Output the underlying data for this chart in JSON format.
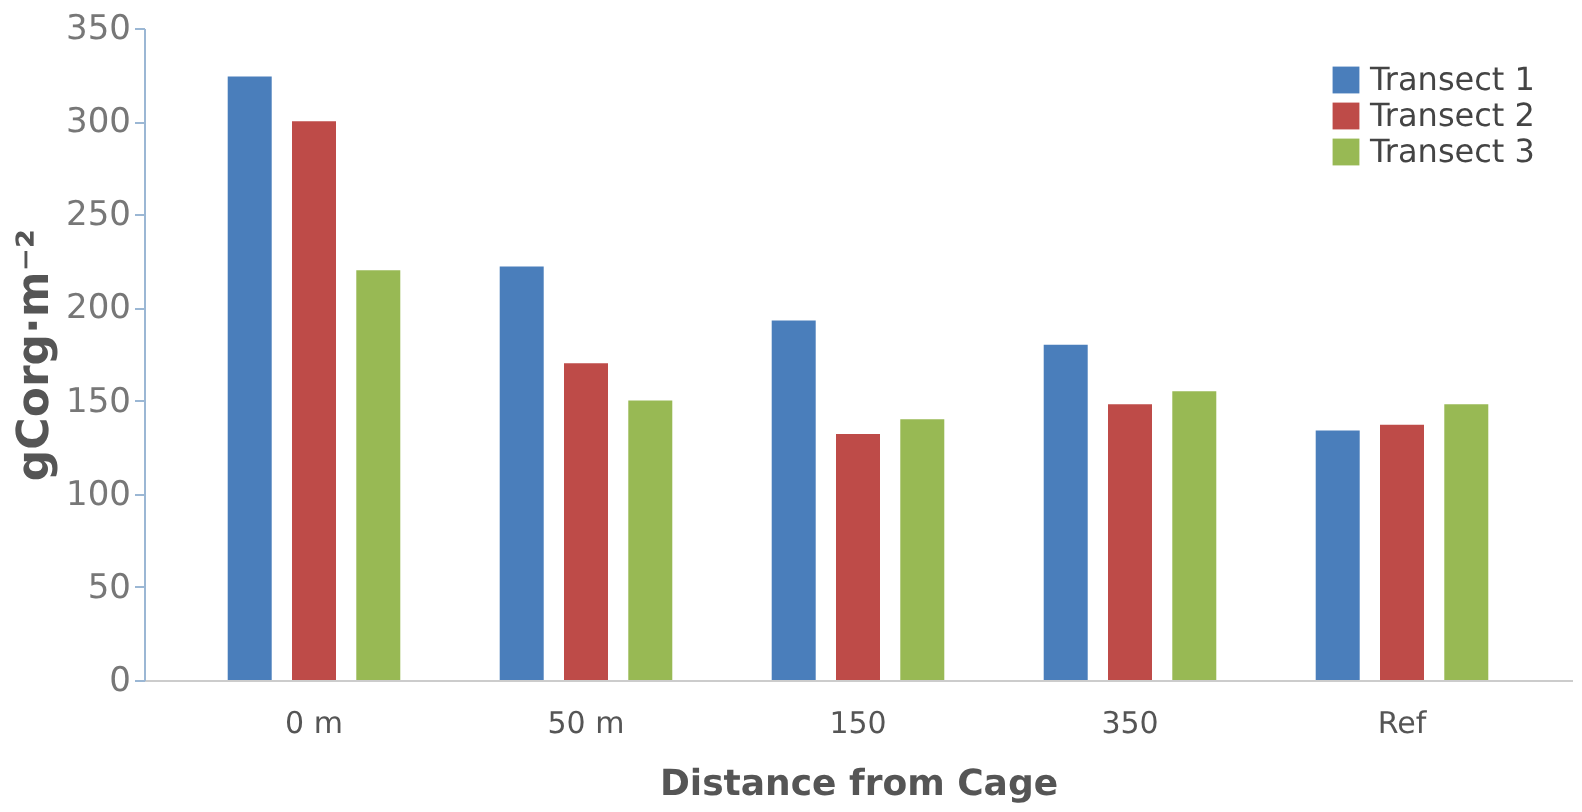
{
  "chart_data": {
    "type": "bar",
    "xlabel": "Distance from Cage",
    "ylabel": "gCorg·m⁻²",
    "categories": [
      "0 m",
      "50 m",
      "150",
      "350",
      "Ref"
    ],
    "series": [
      {
        "name": "Transect 1",
        "color": "#4a7ebb",
        "values": [
          324,
          222,
          193,
          180,
          134
        ]
      },
      {
        "name": "Transect 2",
        "color": "#be4b48",
        "values": [
          300,
          170,
          132,
          148,
          137
        ]
      },
      {
        "name": "Transect 3",
        "color": "#98b954",
        "values": [
          220,
          150,
          140,
          155,
          148
        ]
      }
    ],
    "ylim": [
      0,
      350
    ],
    "yticks": [
      0,
      50,
      100,
      150,
      200,
      250,
      300,
      350
    ],
    "grid": false,
    "legend": "top right"
  }
}
